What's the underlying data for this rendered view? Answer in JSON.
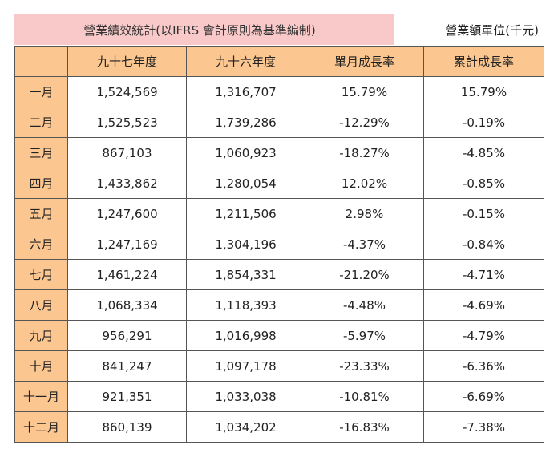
{
  "title": "營業績效統計(以IFRS 會計原則為基準編制)",
  "unit": "營業額單位(千元)",
  "columns": [
    "",
    "九十七年度",
    "九十六年度",
    "單月成長率",
    "累計成長率"
  ],
  "rows": [
    {
      "month": "一月",
      "y97": "1,524,569",
      "y96": "1,316,707",
      "monthly": "15.79%",
      "cumulative": "15.79%"
    },
    {
      "month": "二月",
      "y97": "1,525,523",
      "y96": "1,739,286",
      "monthly": "-12.29%",
      "cumulative": "-0.19%"
    },
    {
      "month": "三月",
      "y97": "867,103",
      "y96": "1,060,923",
      "monthly": "-18.27%",
      "cumulative": "-4.85%"
    },
    {
      "month": "四月",
      "y97": "1,433,862",
      "y96": "1,280,054",
      "monthly": "12.02%",
      "cumulative": "-0.85%"
    },
    {
      "month": "五月",
      "y97": "1,247,600",
      "y96": "1,211,506",
      "monthly": "2.98%",
      "cumulative": "-0.15%"
    },
    {
      "month": "六月",
      "y97": "1,247,169",
      "y96": "1,304,196",
      "monthly": "-4.37%",
      "cumulative": "-0.84%"
    },
    {
      "month": "七月",
      "y97": "1,461,224",
      "y96": "1,854,331",
      "monthly": "-21.20%",
      "cumulative": "-4.71%"
    },
    {
      "month": "八月",
      "y97": "1,068,334",
      "y96": "1,118,393",
      "monthly": "-4.48%",
      "cumulative": "-4.69%"
    },
    {
      "month": "九月",
      "y97": "956,291",
      "y96": "1,016,998",
      "monthly": "-5.97%",
      "cumulative": "-4.79%"
    },
    {
      "month": "十月",
      "y97": "841,247",
      "y96": "1,097,178",
      "monthly": "-23.33%",
      "cumulative": "-6.36%"
    },
    {
      "month": "十一月",
      "y97": "921,351",
      "y96": "1,033,038",
      "monthly": "-10.81%",
      "cumulative": "-6.69%"
    },
    {
      "month": "十二月",
      "y97": "860,139",
      "y96": "1,034,202",
      "monthly": "-16.83%",
      "cumulative": "-7.38%"
    }
  ],
  "colors": {
    "title_bg": "#f9c9c9",
    "header_bg": "#fbc690",
    "border": "#555555"
  }
}
